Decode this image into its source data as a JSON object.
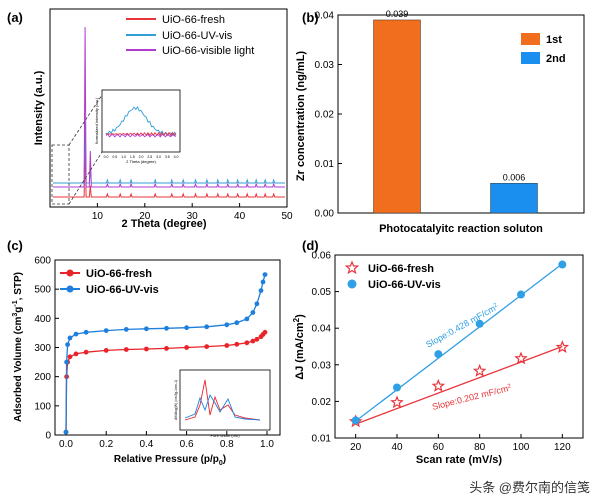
{
  "chart_data": [
    {
      "panel": "(a)",
      "type": "line",
      "xlabel": "2 Theta (degree)",
      "ylabel": "Intensity (a.u.)",
      "xlim": [
        0,
        50
      ],
      "xticks": [
        "10",
        "20",
        "30",
        "40",
        "50"
      ],
      "legend_position": "top-right",
      "series": [
        {
          "name": "UiO-66-fresh",
          "color": "#e8343a"
        },
        {
          "name": "UiO-66-UV-vis",
          "color": "#2f9fd6"
        },
        {
          "name": "UiO-66-visible light",
          "color": "#b23bd0"
        }
      ],
      "peaks_deg": [
        7.4,
        8.5,
        12.1,
        14.8,
        17.1,
        22.2,
        25.7,
        28.1,
        30.7,
        33.1,
        35.4,
        37.5,
        39.6,
        41.6,
        43.5,
        45.4,
        47.2
      ],
      "inset": {
        "ylabel": "Normalized Intensity (a.u.)",
        "xlabel": "2 Theta (degree)",
        "xticks": [
          "0.0",
          "0.5",
          "1.0",
          "1.5",
          "2.0",
          "2.5",
          "3.0",
          "3.5",
          "4.0"
        ]
      }
    },
    {
      "panel": "(b)",
      "type": "bar",
      "ylabel": "Zr concentration (ng/mL)",
      "xlabel": "Photocatalyitc reaction soluton",
      "ylim": [
        0,
        0.04
      ],
      "yticks": [
        "0.00",
        "0.01",
        "0.02",
        "0.03",
        "0.04"
      ],
      "legend_position": "top-right",
      "series": [
        {
          "name": "1st",
          "value": 0.039,
          "label": "0.039",
          "color": "#f26e1f"
        },
        {
          "name": "2nd",
          "value": 0.006,
          "label": "0.006",
          "color": "#1a8ff0"
        }
      ]
    },
    {
      "panel": "(c)",
      "type": "line",
      "ylabel_main": "Adsorbed Volume (cm",
      "ylabel_sup1": "3",
      "ylabel_mid": "g",
      "ylabel_sup2": "-1",
      "ylabel_end": ", STP)",
      "xlabel_main": "Relative Pressure (p/p",
      "xlabel_sub": "0",
      "xlabel_end": ")",
      "xlim": [
        0,
        1.0
      ],
      "ylim": [
        0,
        600
      ],
      "xticks": [
        "0.0",
        "0.2",
        "0.4",
        "0.6",
        "0.8",
        "1.0"
      ],
      "yticks": [
        "0",
        "100",
        "200",
        "300",
        "400",
        "500",
        "600"
      ],
      "legend_position": "top-left",
      "series": [
        {
          "name": "UiO-66-fresh",
          "color": "#e8242a",
          "x": [
            0.0,
            0.003,
            0.008,
            0.02,
            0.05,
            0.1,
            0.2,
            0.3,
            0.4,
            0.5,
            0.6,
            0.7,
            0.8,
            0.85,
            0.9,
            0.93,
            0.95,
            0.97,
            0.98,
            0.99
          ],
          "y": [
            10,
            200,
            250,
            268,
            278,
            284,
            290,
            293,
            295,
            297,
            300,
            303,
            307,
            311,
            316,
            322,
            328,
            337,
            345,
            352
          ]
        },
        {
          "name": "UiO-66-UV-vis",
          "color": "#1e7fdc",
          "x": [
            0.0,
            0.003,
            0.008,
            0.02,
            0.05,
            0.1,
            0.2,
            0.3,
            0.4,
            0.5,
            0.6,
            0.7,
            0.8,
            0.85,
            0.9,
            0.93,
            0.95,
            0.97,
            0.98,
            0.99
          ],
          "y": [
            10,
            250,
            310,
            333,
            346,
            352,
            358,
            362,
            364,
            366,
            368,
            371,
            378,
            385,
            398,
            420,
            450,
            495,
            525,
            550
          ]
        }
      ],
      "inset": {
        "ylabel": "dV/dlog(W) (cm3g-1nm-1)",
        "xlabel": "Pore Width (nm)"
      }
    },
    {
      "panel": "(d)",
      "type": "scatter",
      "ylabel_main": "ΔJ (mA/cm",
      "ylabel_sup": "2",
      "ylabel_end": ")",
      "xlabel": "Scan rate (mV/s)",
      "xlim": [
        10,
        130
      ],
      "ylim": [
        0.01,
        0.06
      ],
      "xticks": [
        "20",
        "40",
        "60",
        "80",
        "100",
        "120"
      ],
      "yticks": [
        "0.01",
        "0.02",
        "0.03",
        "0.04",
        "0.05",
        "0.06"
      ],
      "legend_position": "top-left",
      "series": [
        {
          "name": "UiO-66-fresh",
          "color": "#e8343a",
          "marker": "star",
          "x": [
            20,
            40,
            60,
            80,
            100,
            120
          ],
          "y": [
            0.0145,
            0.0197,
            0.0242,
            0.0283,
            0.0317,
            0.0348
          ],
          "fit": [
            0.0138,
            0.035
          ],
          "slope_main": "Slope:0.202 mF/cm",
          "slope_sup": "2"
        },
        {
          "name": "UiO-66-UV-vis",
          "color": "#2f9fe6",
          "marker": "circle",
          "x": [
            20,
            40,
            60,
            80,
            100,
            120
          ],
          "y": [
            0.0148,
            0.0238,
            0.0329,
            0.0412,
            0.0492,
            0.0574
          ],
          "fit": [
            0.0146,
            0.0576
          ],
          "slope_main": "Slope:0.428 mF/cm",
          "slope_sup": "2"
        }
      ]
    }
  ],
  "watermark": "头条 @费尔南的信笺"
}
